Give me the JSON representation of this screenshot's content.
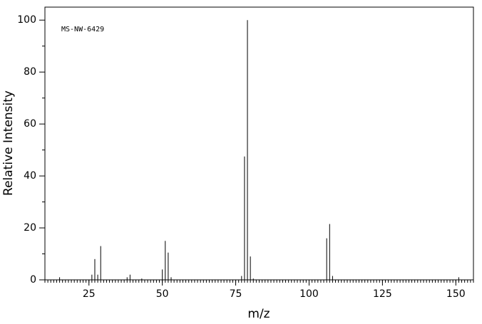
{
  "chart_data": {
    "type": "bar",
    "annotation": "MS-NW-6429",
    "xlabel": "m/z",
    "ylabel": "Relative Intensity",
    "x": [
      15,
      26,
      27,
      28,
      29,
      38,
      39,
      43,
      50,
      51,
      52,
      53,
      77,
      78,
      79,
      80,
      81,
      106,
      107,
      108,
      151
    ],
    "values": [
      1,
      2,
      8,
      2,
      13,
      1,
      2,
      0.5,
      4,
      15,
      10.5,
      1,
      1.5,
      47.5,
      100,
      9,
      0.5,
      16,
      21.5,
      1.5,
      1
    ],
    "color": "#000000",
    "xlim": [
      10,
      156
    ],
    "xticks": [
      25,
      50,
      75,
      100,
      125,
      150
    ],
    "ylim": [
      0,
      105
    ],
    "yticks": [
      0,
      20,
      40,
      60,
      80,
      100
    ]
  }
}
